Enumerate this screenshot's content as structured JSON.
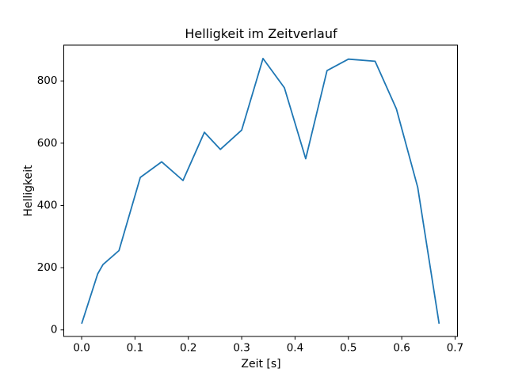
{
  "chart_data": {
    "type": "line",
    "title": "Helligkeit im Zeitverlauf",
    "xlabel": "Zeit [s]",
    "ylabel": "Helligkeit",
    "x": [
      0.0,
      0.03,
      0.04,
      0.07,
      0.11,
      0.15,
      0.19,
      0.23,
      0.26,
      0.3,
      0.34,
      0.38,
      0.42,
      0.46,
      0.5,
      0.55,
      0.59,
      0.63,
      0.67
    ],
    "y": [
      20,
      180,
      210,
      255,
      490,
      540,
      480,
      635,
      580,
      642,
      872,
      778,
      550,
      833,
      870,
      863,
      710,
      458,
      20
    ],
    "xlim": [
      -0.0335,
      0.7045
    ],
    "ylim": [
      -21,
      915
    ],
    "xtick_values": [
      0.0,
      0.1,
      0.2,
      0.3,
      0.4,
      0.5,
      0.6,
      0.7
    ],
    "xtick_labels": [
      "0.0",
      "0.1",
      "0.2",
      "0.3",
      "0.4",
      "0.5",
      "0.6",
      "0.7"
    ],
    "ytick_values": [
      0,
      200,
      400,
      600,
      800
    ],
    "ytick_labels": [
      "0",
      "200",
      "400",
      "600",
      "800"
    ],
    "line_color": "#1f77b4",
    "axis_color": "#000000",
    "background": "#ffffff",
    "grid": false,
    "legend": null
  }
}
